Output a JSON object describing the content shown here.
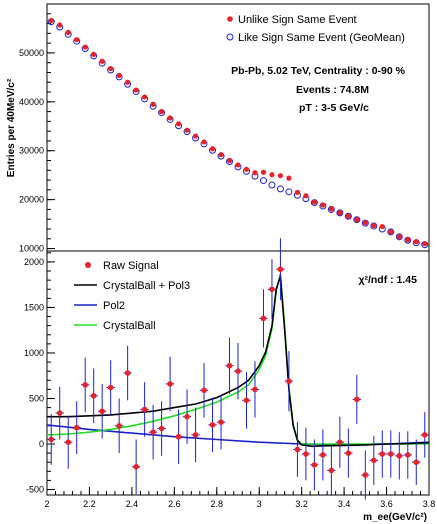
{
  "chart_data": [
    {
      "type": "scatter",
      "ylabel": "Entries per 40MeV/c²",
      "ylim": [
        9500,
        60000
      ],
      "yticks": [
        10000,
        20000,
        30000,
        40000,
        50000
      ],
      "xlim": [
        2.0,
        3.8
      ],
      "legend_placement": "top-right",
      "annotations": [
        "Pb-Pb, 5.02 TeV, Centrality : 0-90 %",
        "Events : 74.8M",
        "pT : 3-5 GeV/c"
      ],
      "x": [
        2.02,
        2.06,
        2.1,
        2.14,
        2.18,
        2.22,
        2.26,
        2.3,
        2.34,
        2.38,
        2.42,
        2.46,
        2.5,
        2.54,
        2.58,
        2.62,
        2.66,
        2.7,
        2.74,
        2.78,
        2.82,
        2.86,
        2.9,
        2.94,
        2.98,
        3.02,
        3.06,
        3.1,
        3.14,
        3.18,
        3.22,
        3.26,
        3.3,
        3.34,
        3.38,
        3.42,
        3.46,
        3.5,
        3.54,
        3.58,
        3.62,
        3.66,
        3.7,
        3.74,
        3.78
      ],
      "series": [
        {
          "name": "Unlike Sign Same Event",
          "color": "#e8222a",
          "marker": "filled-circle",
          "values": [
            56600,
            55700,
            54200,
            52700,
            51200,
            49700,
            48300,
            46800,
            45400,
            44000,
            42400,
            41000,
            39500,
            38000,
            36700,
            35500,
            34200,
            33000,
            31800,
            30400,
            29200,
            28000,
            27100,
            26200,
            25500,
            25600,
            25100,
            24900,
            24400,
            21500,
            20800,
            19500,
            18900,
            18100,
            17300,
            16600,
            15900,
            15300,
            14700,
            14500,
            13400,
            12400,
            11800,
            11400,
            11000
          ]
        },
        {
          "name": "Like Sign Same Event (GeoMean)",
          "color": "#1e22cc",
          "marker": "open-circle",
          "values": [
            56400,
            55300,
            53800,
            52400,
            50900,
            49400,
            47900,
            46500,
            45100,
            43600,
            42100,
            40600,
            39100,
            37800,
            36400,
            35100,
            33900,
            32600,
            31400,
            30100,
            28900,
            27800,
            26700,
            25800,
            24800,
            23900,
            23000,
            22200,
            21600,
            20900,
            20200,
            19400,
            18700,
            18000,
            17300,
            16600,
            15900,
            15200,
            14600,
            14000,
            13400,
            12400,
            11700,
            11200,
            10800
          ]
        }
      ]
    },
    {
      "type": "scatter",
      "xlabel": "m_ee(GeV/c²)",
      "xlim": [
        2.0,
        3.8
      ],
      "ylim": [
        -560,
        2120
      ],
      "xticks": [
        2,
        2.2,
        2.4,
        2.6,
        2.8,
        3,
        3.2,
        3.4,
        3.6,
        3.8
      ],
      "yticks": [
        -500,
        0,
        500,
        1000,
        1500,
        2000
      ],
      "legend_placement": "top-left",
      "annotations": [
        "χ²/ndf : 1.45"
      ],
      "series": [
        {
          "name": "Raw Signal",
          "color": "#e8222a",
          "marker": "filled-circle-with-errors",
          "x": [
            2.02,
            2.06,
            2.1,
            2.14,
            2.18,
            2.22,
            2.26,
            2.3,
            2.34,
            2.38,
            2.42,
            2.46,
            2.5,
            2.54,
            2.58,
            2.62,
            2.66,
            2.7,
            2.74,
            2.78,
            2.82,
            2.86,
            2.9,
            2.94,
            2.98,
            3.02,
            3.06,
            3.1,
            3.14,
            3.18,
            3.22,
            3.26,
            3.3,
            3.34,
            3.38,
            3.42,
            3.46,
            3.5,
            3.54,
            3.58,
            3.62,
            3.66,
            3.7,
            3.74,
            3.78
          ],
          "values": [
            50,
            340,
            20,
            180,
            650,
            530,
            360,
            620,
            200,
            780,
            -250,
            380,
            130,
            170,
            660,
            80,
            300,
            100,
            590,
            210,
            240,
            860,
            800,
            480,
            600,
            1380,
            1700,
            1920,
            690,
            -60,
            -110,
            -230,
            -120,
            -290,
            20,
            -100,
            490,
            -340,
            -180,
            -110,
            -110,
            -130,
            -120,
            -200,
            100
          ],
          "errors": [
            280,
            290,
            290,
            290,
            300,
            300,
            300,
            300,
            300,
            300,
            300,
            300,
            300,
            300,
            300,
            300,
            300,
            300,
            300,
            300,
            300,
            310,
            310,
            310,
            310,
            320,
            330,
            340,
            330,
            300,
            290,
            280,
            280,
            280,
            280,
            270,
            270,
            270,
            270,
            260,
            260,
            260,
            260,
            250,
            250
          ]
        },
        {
          "name": "CrystalBall + Pol3",
          "color": "#000000",
          "type": "line",
          "x": [
            2.0,
            2.1,
            2.2,
            2.3,
            2.4,
            2.5,
            2.6,
            2.7,
            2.8,
            2.9,
            2.95,
            3.0,
            3.03,
            3.06,
            3.08,
            3.1,
            3.12,
            3.14,
            3.16,
            3.18,
            3.2,
            3.25,
            3.3,
            3.4,
            3.5,
            3.6,
            3.7,
            3.8
          ],
          "values": [
            300,
            300,
            310,
            320,
            340,
            360,
            400,
            440,
            510,
            620,
            700,
            860,
            1010,
            1300,
            1700,
            1840,
            1250,
            600,
            200,
            40,
            -10,
            -25,
            -20,
            -15,
            -10,
            0,
            5,
            15
          ]
        },
        {
          "name": "Pol2",
          "color": "#1e22cc",
          "type": "line",
          "x": [
            2.0,
            2.2,
            2.4,
            2.6,
            2.8,
            3.0,
            3.2,
            3.4,
            3.6,
            3.8
          ],
          "values": [
            210,
            160,
            120,
            80,
            50,
            20,
            0,
            -10,
            0,
            20
          ]
        },
        {
          "name": "CrystalBall",
          "color": "#22dd22",
          "type": "line",
          "x": [
            2.0,
            2.1,
            2.2,
            2.3,
            2.4,
            2.5,
            2.6,
            2.7,
            2.8,
            2.9,
            2.95,
            3.0,
            3.03,
            3.06,
            3.08,
            3.1,
            3.12,
            3.14,
            3.16,
            3.18,
            3.2,
            3.25,
            3.3,
            3.4,
            3.5,
            3.6,
            3.7,
            3.8
          ],
          "values": [
            100,
            110,
            130,
            160,
            200,
            250,
            310,
            380,
            460,
            570,
            650,
            820,
            970,
            1270,
            1680,
            1870,
            1280,
            620,
            210,
            50,
            0,
            0,
            0,
            0,
            0,
            0,
            0,
            0
          ]
        }
      ]
    }
  ]
}
